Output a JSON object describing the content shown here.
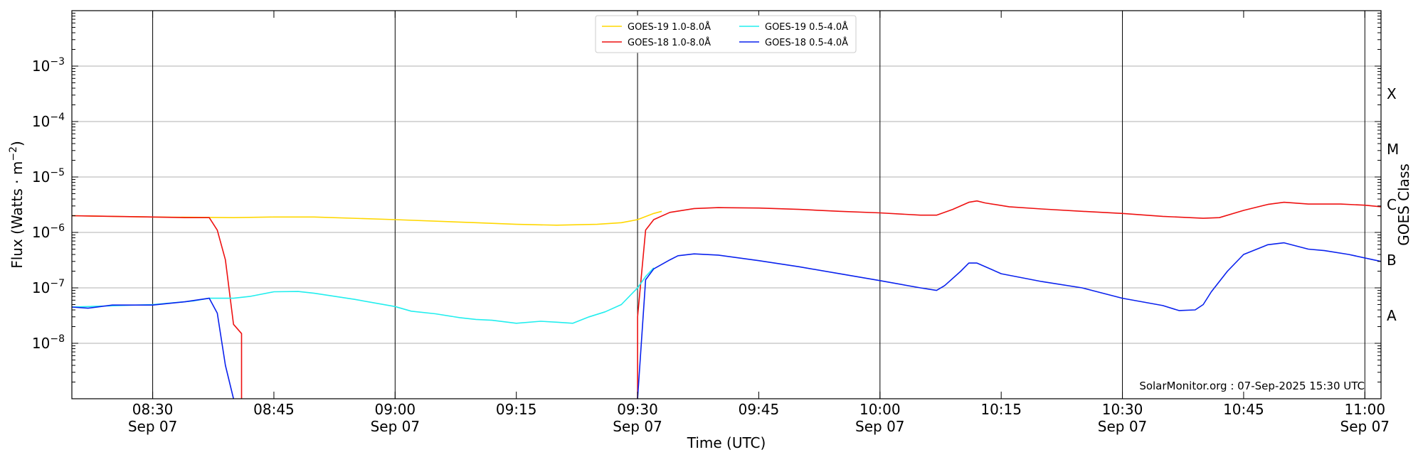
{
  "chart_data": {
    "type": "line",
    "x_range": [
      "08:20",
      "11:02"
    ],
    "y_scale": "log",
    "y_range": [
      1e-09,
      0.01
    ],
    "grid": "horizontal",
    "legend_placement": "top-center",
    "xlabel": "Time (UTC)",
    "ylabel_prefix": "Flux (Watts · m",
    "ylabel_sup": "−2",
    "ylabel_suffix": ")",
    "right_label": "GOES Class",
    "credit": "SolarMonitor.org : 07-Sep-2025 15:30 UTC",
    "y_ticks": [
      {
        "value": 1e-08,
        "base": "10",
        "exp": "−8"
      },
      {
        "value": 1e-07,
        "base": "10",
        "exp": "−7"
      },
      {
        "value": 1e-06,
        "base": "10",
        "exp": "−6"
      },
      {
        "value": 1e-05,
        "base": "10",
        "exp": "−5"
      },
      {
        "value": 0.0001,
        "base": "10",
        "exp": "−4"
      },
      {
        "value": 0.001,
        "base": "10",
        "exp": "−3"
      }
    ],
    "class_ticks": [
      {
        "label": "A",
        "value": 1e-08
      },
      {
        "label": "B",
        "value": 1e-07
      },
      {
        "label": "C",
        "value": 1e-06
      },
      {
        "label": "M",
        "value": 1e-05
      },
      {
        "label": "X",
        "value": 0.0001
      }
    ],
    "x_ticks": [
      {
        "time": "08:30",
        "date": "Sep 07",
        "major": true
      },
      {
        "time": "08:45",
        "date": "",
        "major": false
      },
      {
        "time": "09:00",
        "date": "Sep 07",
        "major": true
      },
      {
        "time": "09:15",
        "date": "",
        "major": false
      },
      {
        "time": "09:30",
        "date": "Sep 07",
        "major": true
      },
      {
        "time": "09:45",
        "date": "",
        "major": false
      },
      {
        "time": "10:00",
        "date": "Sep 07",
        "major": true
      },
      {
        "time": "10:15",
        "date": "",
        "major": false
      },
      {
        "time": "10:30",
        "date": "Sep 07",
        "major": true
      },
      {
        "time": "10:45",
        "date": "",
        "major": false
      },
      {
        "time": "11:00",
        "date": "Sep 07",
        "major": true
      }
    ],
    "series": [
      {
        "name": "GOES-19 1.0-8.0Å",
        "color": "#ffd700",
        "points": [
          [
            "08:20",
            2e-06
          ],
          [
            "08:30",
            1.9e-06
          ],
          [
            "08:40",
            1.85e-06
          ],
          [
            "08:45",
            1.9e-06
          ],
          [
            "08:50",
            1.9e-06
          ],
          [
            "09:00",
            1.7e-06
          ],
          [
            "09:10",
            1.5e-06
          ],
          [
            "09:15",
            1.4e-06
          ],
          [
            "09:20",
            1.35e-06
          ],
          [
            "09:25",
            1.4e-06
          ],
          [
            "09:28",
            1.5e-06
          ],
          [
            "09:30",
            1.7e-06
          ],
          [
            "09:32",
            2.2e-06
          ],
          [
            "09:33",
            2.4e-06
          ]
        ]
      },
      {
        "name": "GOES-18 1.0-8.0Å",
        "color": "#ee1111",
        "points": [
          [
            "08:20",
            2e-06
          ],
          [
            "08:30",
            1.9e-06
          ],
          [
            "08:34",
            1.85e-06
          ],
          [
            "08:37",
            1.85e-06
          ],
          [
            "08:38",
            1.1e-06
          ],
          [
            "08:39",
            3.2e-07
          ],
          [
            "08:40",
            2.2e-08
          ],
          [
            "08:41",
            1.5e-08
          ],
          [
            "08:41",
            1e-09
          ],
          null,
          [
            "09:30",
            1e-09
          ],
          [
            "09:30",
            3e-08
          ],
          [
            "09:31",
            1.1e-06
          ],
          [
            "09:32",
            1.7e-06
          ],
          [
            "09:34",
            2.3e-06
          ],
          [
            "09:37",
            2.7e-06
          ],
          [
            "09:40",
            2.8e-06
          ],
          [
            "09:45",
            2.75e-06
          ],
          [
            "09:50",
            2.6e-06
          ],
          [
            "09:55",
            2.4e-06
          ],
          [
            "10:00",
            2.25e-06
          ],
          [
            "10:05",
            2.05e-06
          ],
          [
            "10:07",
            2.05e-06
          ],
          [
            "10:09",
            2.6e-06
          ],
          [
            "10:11",
            3.5e-06
          ],
          [
            "10:12",
            3.7e-06
          ],
          [
            "10:13",
            3.4e-06
          ],
          [
            "10:16",
            2.9e-06
          ],
          [
            "10:20",
            2.65e-06
          ],
          [
            "10:25",
            2.4e-06
          ],
          [
            "10:30",
            2.2e-06
          ],
          [
            "10:35",
            1.95e-06
          ],
          [
            "10:40",
            1.8e-06
          ],
          [
            "10:42",
            1.85e-06
          ],
          [
            "10:45",
            2.5e-06
          ],
          [
            "10:48",
            3.2e-06
          ],
          [
            "10:50",
            3.5e-06
          ],
          [
            "10:53",
            3.25e-06
          ],
          [
            "10:57",
            3.25e-06
          ],
          [
            "11:00",
            3.1e-06
          ],
          [
            "11:02",
            2.9e-06
          ]
        ]
      },
      {
        "name": "GOES-19 0.5-4.0Å",
        "color": "#22eeee",
        "points": [
          [
            "08:20",
            4.5e-08
          ],
          [
            "08:30",
            5e-08
          ],
          [
            "08:35",
            5.8e-08
          ],
          [
            "08:37",
            6.5e-08
          ],
          [
            "08:40",
            6.5e-08
          ],
          [
            "08:42",
            7e-08
          ],
          [
            "08:45",
            8.5e-08
          ],
          [
            "08:48",
            8.6e-08
          ],
          [
            "08:50",
            8e-08
          ],
          [
            "08:55",
            6.2e-08
          ],
          [
            "09:00",
            4.6e-08
          ],
          [
            "09:02",
            3.8e-08
          ],
          [
            "09:05",
            3.4e-08
          ],
          [
            "09:08",
            2.9e-08
          ],
          [
            "09:10",
            2.7e-08
          ],
          [
            "09:12",
            2.6e-08
          ],
          [
            "09:15",
            2.3e-08
          ],
          [
            "09:18",
            2.5e-08
          ],
          [
            "09:20",
            2.4e-08
          ],
          [
            "09:22",
            2.3e-08
          ],
          [
            "09:24",
            3e-08
          ],
          [
            "09:26",
            3.7e-08
          ],
          [
            "09:28",
            5e-08
          ],
          [
            "09:30",
            1e-07
          ],
          [
            "09:31",
            1.6e-07
          ],
          [
            "09:32",
            2.3e-07
          ]
        ]
      },
      {
        "name": "GOES-18 0.5-4.0Å",
        "color": "#0a22ee",
        "points": [
          [
            "08:20",
            4.5e-08
          ],
          [
            "08:22",
            4.3e-08
          ],
          [
            "08:25",
            4.9e-08
          ],
          [
            "08:30",
            4.9e-08
          ],
          [
            "08:34",
            5.6e-08
          ],
          [
            "08:37",
            6.5e-08
          ],
          [
            "08:38",
            3.5e-08
          ],
          [
            "08:39",
            4e-09
          ],
          [
            "08:40",
            1e-09
          ],
          null,
          [
            "09:30",
            1e-09
          ],
          [
            "09:31",
            1.4e-07
          ],
          [
            "09:32",
            2.2e-07
          ],
          [
            "09:34",
            3.2e-07
          ],
          [
            "09:35",
            3.8e-07
          ],
          [
            "09:37",
            4.1e-07
          ],
          [
            "09:40",
            3.9e-07
          ],
          [
            "09:45",
            3.1e-07
          ],
          [
            "09:50",
            2.4e-07
          ],
          [
            "09:55",
            1.8e-07
          ],
          [
            "10:00",
            1.35e-07
          ],
          [
            "10:05",
            1e-07
          ],
          [
            "10:07",
            9e-08
          ],
          [
            "10:08",
            1.1e-07
          ],
          [
            "10:10",
            2e-07
          ],
          [
            "10:11",
            2.8e-07
          ],
          [
            "10:12",
            2.8e-07
          ],
          [
            "10:15",
            1.8e-07
          ],
          [
            "10:20",
            1.3e-07
          ],
          [
            "10:25",
            1e-07
          ],
          [
            "10:30",
            6.5e-08
          ],
          [
            "10:35",
            4.8e-08
          ],
          [
            "10:37",
            3.9e-08
          ],
          [
            "10:39",
            4e-08
          ],
          [
            "10:40",
            5e-08
          ],
          [
            "10:41",
            8.5e-08
          ],
          [
            "10:43",
            2e-07
          ],
          [
            "10:45",
            4e-07
          ],
          [
            "10:48",
            6e-07
          ],
          [
            "10:50",
            6.5e-07
          ],
          [
            "10:53",
            5e-07
          ],
          [
            "10:55",
            4.7e-07
          ],
          [
            "10:58",
            4e-07
          ],
          [
            "11:02",
            3e-07
          ]
        ]
      }
    ]
  }
}
